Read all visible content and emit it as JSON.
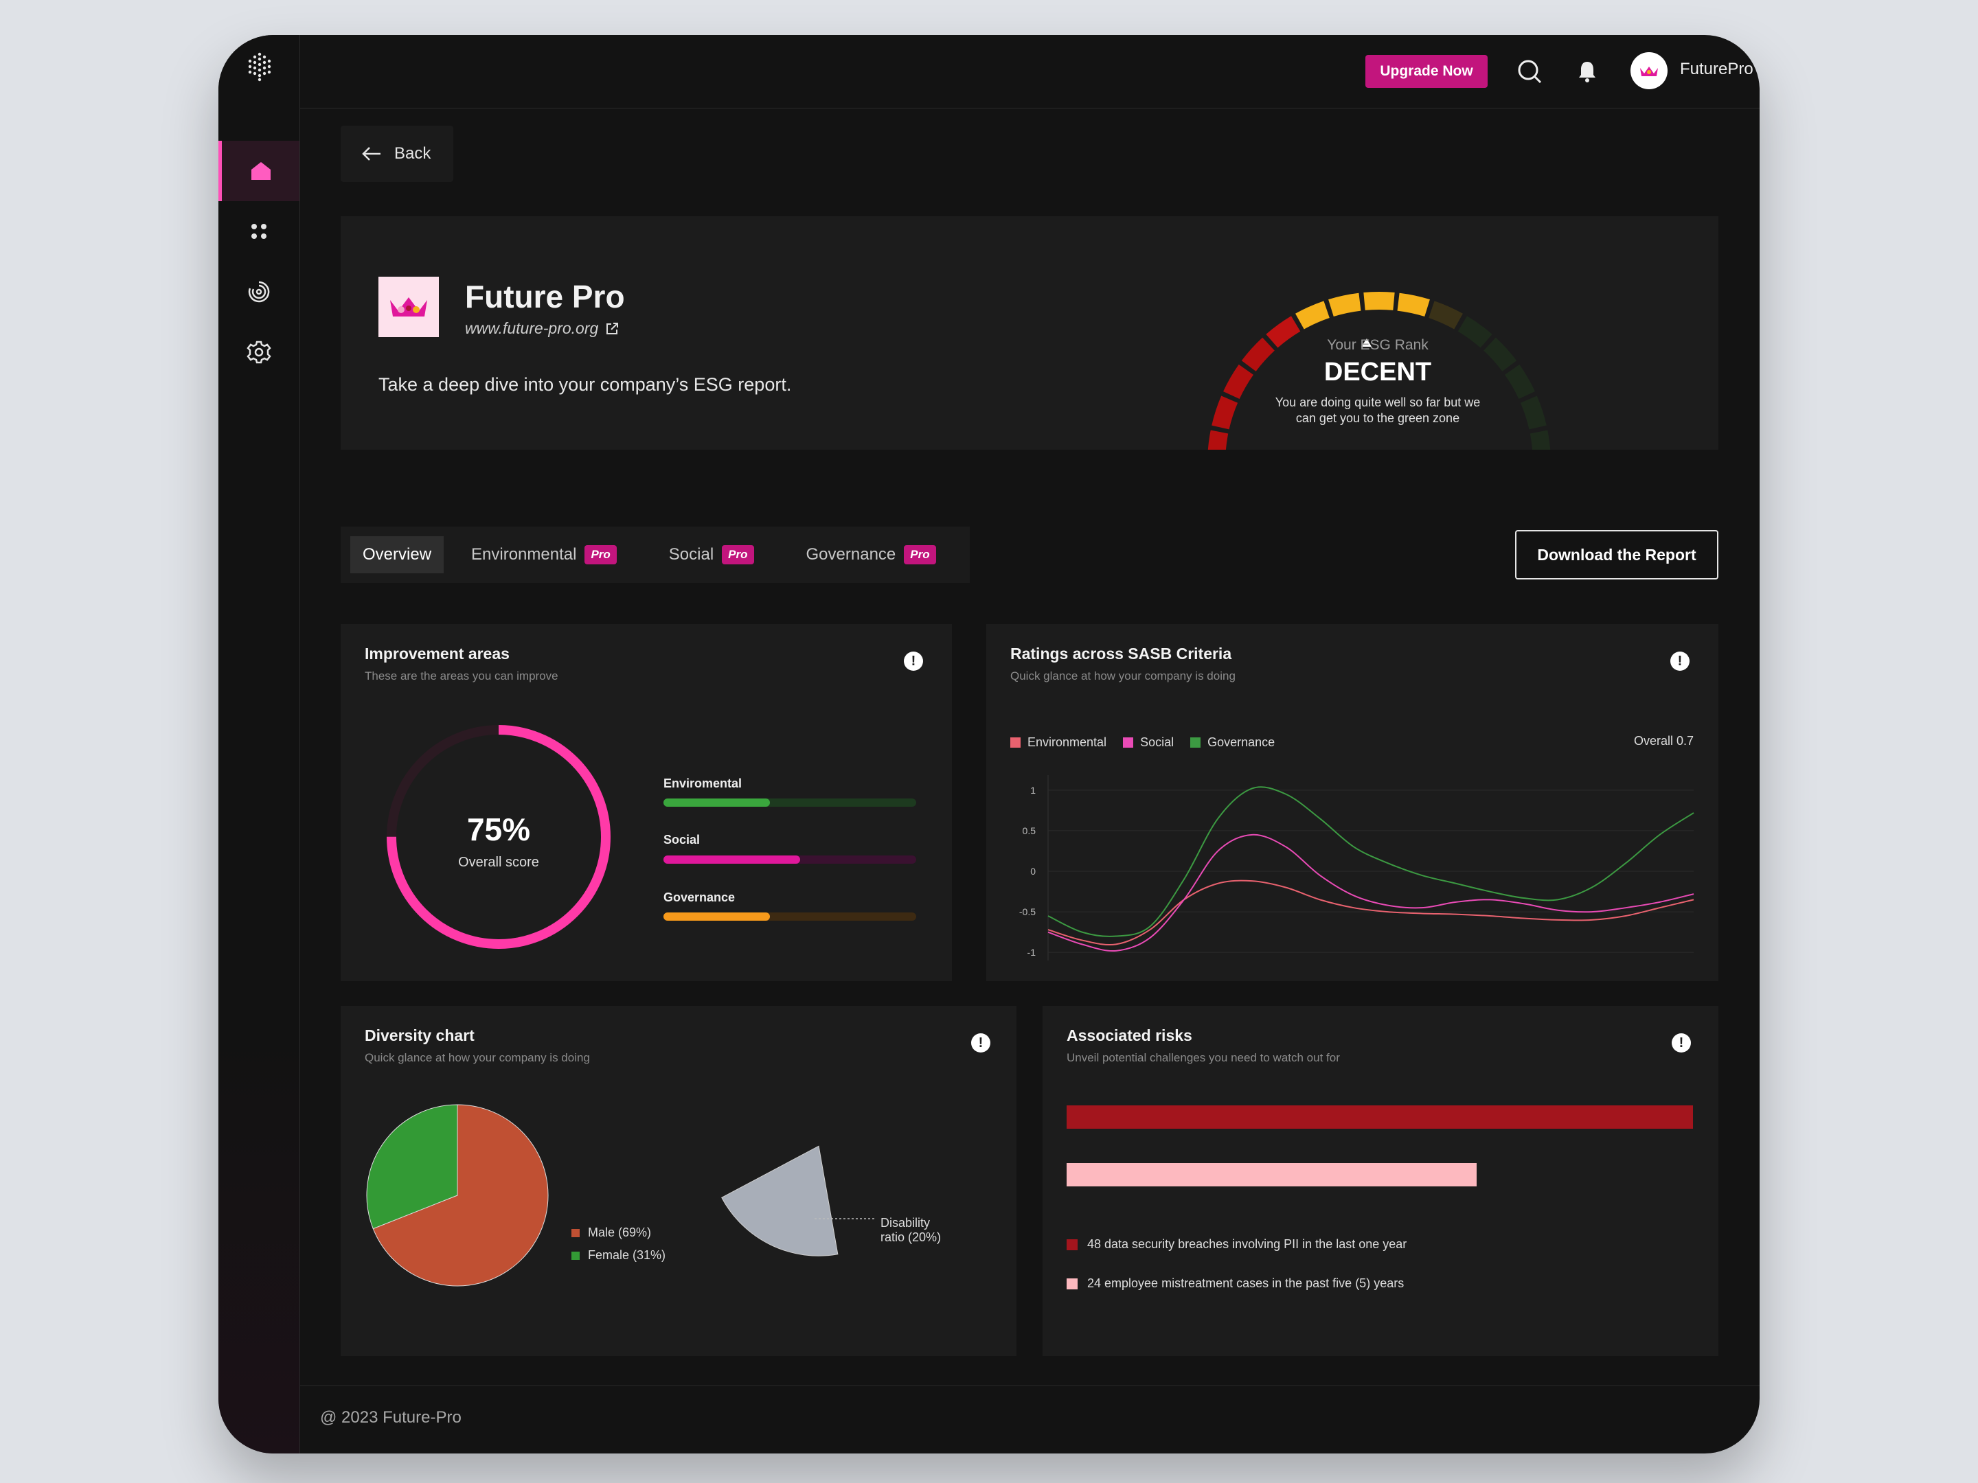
{
  "topbar": {
    "upgrade_label": "Upgrade Now",
    "username": "FuturePro"
  },
  "nav": {
    "back_label": "Back"
  },
  "hero": {
    "company_name": "Future Pro",
    "website": "www.future-pro.org",
    "tagline": "Take a deep dive into your company’s ESG report.",
    "rank_label": "Your ESG Rank",
    "rank_value": "DECENT",
    "rank_description": "You are doing quite well so far but we can get you to the green zone"
  },
  "tabs": [
    {
      "label": "Overview",
      "active": true,
      "pro": ""
    },
    {
      "label": "Environmental",
      "active": false,
      "pro": "Pro"
    },
    {
      "label": "Social",
      "active": false,
      "pro": "Pro"
    },
    {
      "label": "Governance",
      "active": false,
      "pro": "Pro"
    }
  ],
  "download_label": "Download the Report",
  "improvement": {
    "title": "Improvement areas",
    "subtitle": "These are the areas you can improve",
    "overall_value": "75%",
    "overall_label": "Overall score",
    "overall_fraction": 0.75,
    "bars": [
      {
        "label": "Enviromental",
        "fraction": 0.42,
        "color": "#3aa63d",
        "track": "#1d3a1f"
      },
      {
        "label": "Social",
        "fraction": 0.54,
        "color": "#e0189b",
        "track": "#3a1130"
      },
      {
        "label": "Governance",
        "fraction": 0.42,
        "color": "#f79a1b",
        "track": "#3d2a12"
      }
    ]
  },
  "sasb": {
    "title": "Ratings across SASB Criteria",
    "subtitle": "Quick glance at how your company is doing",
    "overall_label": "Overall",
    "overall_value": "0.7"
  },
  "diversity": {
    "title": "Diversity chart",
    "subtitle": "Quick glance at how your company is doing",
    "legend": [
      {
        "label": "Male (69%)",
        "color": "#c05033"
      },
      {
        "label": "Female (31%)",
        "color": "#339a35"
      }
    ],
    "disability_label_line1": "Disability",
    "disability_label_line2": "ratio (20%)"
  },
  "risks": {
    "title": "Associated risks",
    "subtitle": "Unveil potential challenges you need to watch out for",
    "items": [
      {
        "label": "48 data security breaches involving PII in the last one year",
        "color": "#a3151d",
        "fraction": 1.0
      },
      {
        "label": "24 employee mistreatment cases in the past five (5) years",
        "color": "#fdb9bf",
        "fraction": 0.655
      }
    ]
  },
  "footer": {
    "text": "@ 2023 Future-Pro"
  },
  "colors": {
    "accent": "#c2157d",
    "pink": "#ff3aa8"
  },
  "chart_data": [
    {
      "type": "line",
      "title": "Ratings across SASB Criteria",
      "x": [
        0,
        1,
        2,
        3,
        4,
        5,
        6,
        7,
        8,
        9,
        10,
        11,
        12,
        13,
        14,
        15,
        16,
        17,
        18,
        19
      ],
      "ylim": [
        -1.1,
        1.1
      ],
      "yticks": [
        "1",
        "0.5",
        "0",
        "-0.5",
        "-1"
      ],
      "ytick_values": [
        1,
        0.5,
        0,
        -0.5,
        -1
      ],
      "series": [
        {
          "name": "Environmental",
          "color": "#e9626f",
          "values": [
            -0.72,
            -0.85,
            -0.9,
            -0.72,
            -0.35,
            -0.15,
            -0.12,
            -0.2,
            -0.35,
            -0.45,
            -0.5,
            -0.52,
            -0.53,
            -0.55,
            -0.58,
            -0.6,
            -0.6,
            -0.55,
            -0.45,
            -0.35
          ]
        },
        {
          "name": "Social",
          "color": "#e94bb6",
          "values": [
            -0.75,
            -0.9,
            -0.98,
            -0.82,
            -0.35,
            0.25,
            0.45,
            0.3,
            -0.05,
            -0.3,
            -0.42,
            -0.45,
            -0.38,
            -0.35,
            -0.4,
            -0.48,
            -0.5,
            -0.45,
            -0.38,
            -0.28
          ]
        },
        {
          "name": "Governance",
          "color": "#3c9a42",
          "values": [
            -0.55,
            -0.75,
            -0.8,
            -0.68,
            -0.1,
            0.65,
            1.02,
            0.95,
            0.65,
            0.3,
            0.1,
            -0.05,
            -0.15,
            -0.25,
            -0.33,
            -0.35,
            -0.2,
            0.1,
            0.45,
            0.72
          ]
        }
      ]
    },
    {
      "type": "pie",
      "title": "Diversity chart",
      "labels": [
        "Male",
        "Female"
      ],
      "values": [
        69,
        31
      ]
    },
    {
      "type": "pie",
      "labels": [
        "Disability ratio"
      ],
      "values": [
        20
      ]
    },
    {
      "type": "bar",
      "title": "Associated risks",
      "categories": [
        "data security breaches involving PII in the last one year",
        "employee mistreatment cases in the past five (5) years"
      ],
      "values": [
        48,
        24
      ]
    }
  ]
}
